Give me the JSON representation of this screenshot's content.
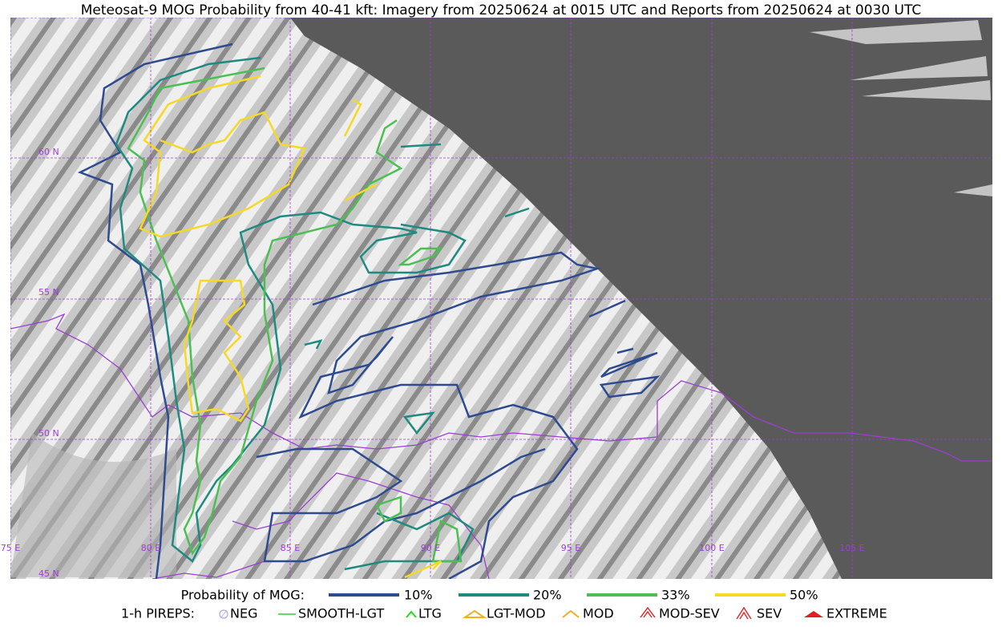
{
  "header": {
    "title": "Meteosat-9 MOG Probability from 40-41 kft: Imagery from 20250624 at 0015 UTC and Reports from 20250624 at 0030 UTC"
  },
  "map": {
    "lat_labels": [
      "60 N",
      "55 N",
      "50 N",
      "45 N"
    ],
    "lon_labels": [
      "75 E",
      "80 E",
      "85 E",
      "90 E",
      "95 E",
      "100 E",
      "105 E"
    ]
  },
  "legend": {
    "probability": {
      "label": "Probability of MOG:",
      "items": [
        "10%",
        "20%",
        "33%",
        "50%"
      ]
    },
    "pireps": {
      "label": "1-h PIREPS:",
      "items": [
        "NEG",
        "SMOOTH-LGT",
        "LTG",
        "LGT-MOD",
        "MOD",
        "MOD-SEV",
        "SEV",
        "EXTREME"
      ]
    }
  }
}
